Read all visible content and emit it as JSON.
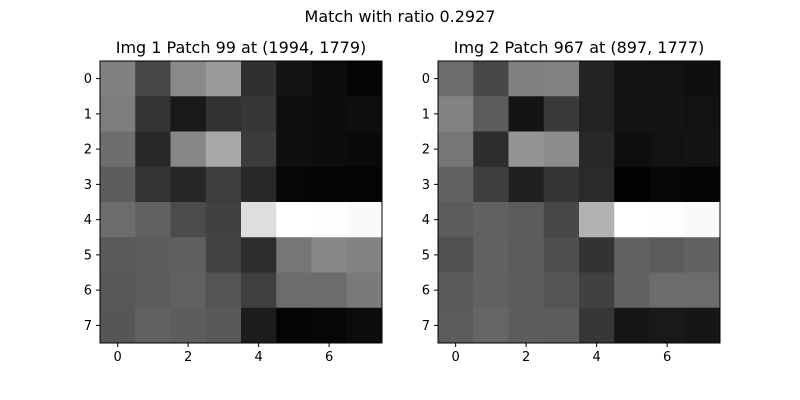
{
  "suptitle": "Match with ratio 0.2927",
  "chart_data": [
    {
      "type": "heatmap",
      "title": "Img 1 Patch 99 at (1994, 1779)",
      "colormap": "gray",
      "vmin": 0,
      "vmax": 255,
      "x_ticks": [
        0,
        2,
        4,
        6
      ],
      "y_ticks": [
        0,
        1,
        2,
        3,
        4,
        5,
        6,
        7
      ],
      "values": [
        [
          128,
          70,
          138,
          155,
          48,
          20,
          12,
          5
        ],
        [
          126,
          52,
          25,
          50,
          55,
          15,
          12,
          14
        ],
        [
          110,
          40,
          135,
          168,
          60,
          15,
          12,
          10
        ],
        [
          93,
          52,
          38,
          62,
          40,
          6,
          4,
          4
        ],
        [
          108,
          97,
          75,
          65,
          222,
          255,
          253,
          250
        ],
        [
          90,
          93,
          95,
          67,
          45,
          118,
          135,
          130
        ],
        [
          88,
          93,
          97,
          85,
          63,
          108,
          108,
          122
        ],
        [
          86,
          97,
          93,
          88,
          28,
          4,
          6,
          12
        ]
      ]
    },
    {
      "type": "heatmap",
      "title": "Img 2 Patch 967 at (897, 1777)",
      "colormap": "gray",
      "vmin": 0,
      "vmax": 255,
      "x_ticks": [
        0,
        2,
        4,
        6
      ],
      "y_ticks": [
        0,
        1,
        2,
        3,
        4,
        5,
        6,
        7
      ],
      "values": [
        [
          108,
          72,
          128,
          130,
          35,
          20,
          18,
          15
        ],
        [
          130,
          92,
          20,
          58,
          35,
          18,
          20,
          18
        ],
        [
          118,
          45,
          148,
          140,
          40,
          15,
          18,
          20
        ],
        [
          98,
          62,
          32,
          52,
          42,
          2,
          6,
          5
        ],
        [
          92,
          97,
          92,
          72,
          178,
          255,
          253,
          250
        ],
        [
          80,
          98,
          92,
          78,
          50,
          98,
          92,
          98
        ],
        [
          90,
          98,
          93,
          85,
          65,
          98,
          108,
          108
        ],
        [
          92,
          102,
          93,
          92,
          55,
          22,
          25,
          22
        ]
      ]
    }
  ]
}
